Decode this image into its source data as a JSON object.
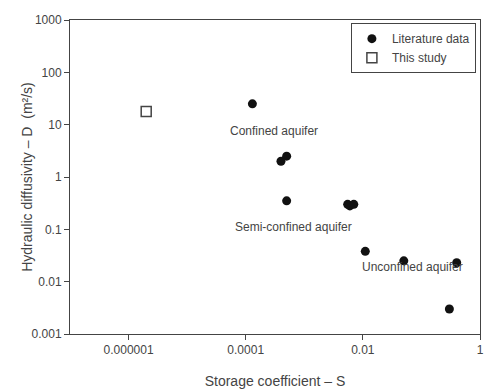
{
  "chart_data": {
    "type": "scatter",
    "xlabel": "Storage coefficient – S",
    "ylabel": "Hydraulic diffusivity – D  (m²/s)",
    "series": [
      {
        "name": "Literature data",
        "color": "#111111",
        "marker": "circle",
        "x": [
          0.00013,
          0.0004,
          0.0005,
          0.0005,
          0.0055,
          0.006,
          0.007,
          0.011,
          0.05,
          0.3,
          0.4
        ],
        "values": [
          25.0,
          2.0,
          2.5,
          0.35,
          0.3,
          0.28,
          0.3,
          0.038,
          0.025,
          0.003,
          0.023
        ]
      },
      {
        "name": "This study",
        "color": "#444444",
        "marker": "square-open",
        "x": [
          2e-06
        ],
        "values": [
          17.9
        ]
      }
    ],
    "xlim": [
      1e-07,
      1
    ],
    "ylim": [
      0.001,
      1000
    ],
    "xticks": [
      1e-06,
      0.0001,
      0.01,
      1
    ],
    "yticks": [
      0.001,
      0.01,
      0.1,
      1,
      10,
      100,
      1000
    ],
    "log": true,
    "grid": false,
    "legend": "upper right",
    "annotations": [
      {
        "text": "Confined aquifer",
        "x": 5e-05,
        "y": 5.0
      },
      {
        "text": "Semi-confined aquifer",
        "x": 6e-05,
        "y": 0.075
      },
      {
        "text": "Unconfined aquifer",
        "x": 0.009,
        "y": 0.013
      }
    ]
  }
}
